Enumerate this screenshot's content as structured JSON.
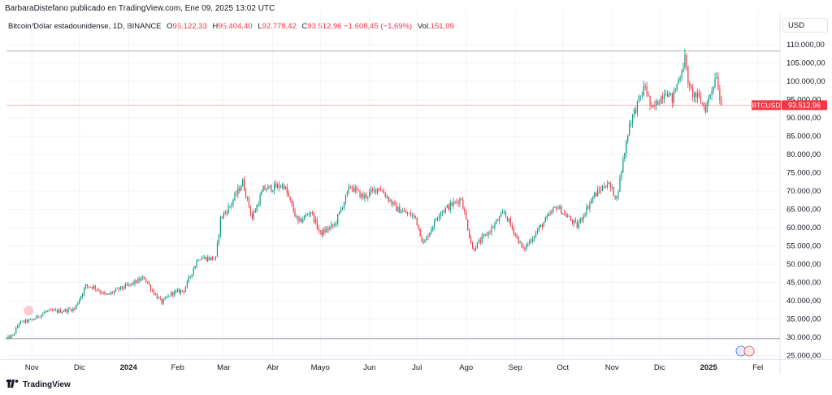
{
  "header": {
    "published": "BarbaraDistefano publicado en TradingView.com, Ene 09, 2025 13:02 UTC"
  },
  "legend": {
    "symbol": "Bitcoin/Dólar estadounidense, 1D, BINANCE",
    "o_label": "O",
    "o_value": "95.122,33",
    "h_label": "H",
    "h_value": "95.404,40",
    "l_label": "L",
    "l_value": "92.778,42",
    "c_label": "C",
    "c_value": "93.512,96",
    "change": "−1.608,45 (−1,69%)",
    "vol_label": "Vol.",
    "vol_value": "151,09"
  },
  "currency": "USD",
  "price_tag": {
    "ticker": "BTCUSD",
    "value": "93.512,96"
  },
  "footer": {
    "brand": "TradingView",
    "logo_icon": "tradingview-logo-icon"
  },
  "colors": {
    "up": "#089981",
    "down": "#f23645",
    "grid": "#f0f3fa",
    "axis_text": "#131722"
  },
  "chart_data": {
    "type": "candlestick",
    "ylim": [
      24000,
      112500
    ],
    "y_ticks": [
      25000,
      30000,
      35000,
      40000,
      45000,
      50000,
      55000,
      60000,
      65000,
      70000,
      75000,
      80000,
      85000,
      90000,
      95000,
      100000,
      105000,
      110000
    ],
    "y_tick_labels": [
      "25.000,00",
      "30.000,00",
      "35.000,00",
      "40.000,00",
      "45.000,00",
      "50.000,00",
      "55.000,00",
      "60.000,00",
      "65.000,00",
      "70.000,00",
      "75.000,00",
      "80.000,00",
      "85.000,00",
      "90.000,00",
      "95.000,00",
      "100.000,00",
      "105.000,00",
      "110.000,00"
    ],
    "x_ticks": [
      {
        "date": "2023-11-01",
        "label": "Nov"
      },
      {
        "date": "2023-12-01",
        "label": "Dic"
      },
      {
        "date": "2024-01-01",
        "label": "2024"
      },
      {
        "date": "2024-02-01",
        "label": "Feb"
      },
      {
        "date": "2024-03-01",
        "label": "Mar"
      },
      {
        "date": "2024-04-01",
        "label": "Abr"
      },
      {
        "date": "2024-05-01",
        "label": "Mayo"
      },
      {
        "date": "2024-06-01",
        "label": "Jun"
      },
      {
        "date": "2024-07-01",
        "label": "Jul"
      },
      {
        "date": "2024-08-01",
        "label": "Ago"
      },
      {
        "date": "2024-09-01",
        "label": "Sep"
      },
      {
        "date": "2024-10-01",
        "label": "Oct"
      },
      {
        "date": "2024-11-01",
        "label": "Nov"
      },
      {
        "date": "2024-12-01",
        "label": "Dic"
      },
      {
        "date": "2025-01-01",
        "label": "2025"
      },
      {
        "date": "2025-02-01",
        "label": "Fel"
      }
    ],
    "x_range": [
      "2023-10-16",
      "2025-02-15"
    ],
    "range_high": 108300,
    "range_low": 29600,
    "last_price": 93512.96,
    "grid": true,
    "close_path": [
      [
        "2023-10-16",
        29700
      ],
      [
        "2023-10-20",
        30400
      ],
      [
        "2023-10-24",
        34000
      ],
      [
        "2023-11-01",
        34700
      ],
      [
        "2023-11-10",
        37100
      ],
      [
        "2023-11-20",
        37200
      ],
      [
        "2023-11-28",
        37800
      ],
      [
        "2023-12-05",
        44100
      ],
      [
        "2023-12-10",
        43800
      ],
      [
        "2023-12-18",
        41400
      ],
      [
        "2023-12-25",
        43000
      ],
      [
        "2024-01-01",
        44200
      ],
      [
        "2024-01-11",
        46300
      ],
      [
        "2024-01-16",
        42700
      ],
      [
        "2024-01-22",
        39500
      ],
      [
        "2024-01-28",
        42000
      ],
      [
        "2024-02-05",
        42900
      ],
      [
        "2024-02-14",
        51800
      ],
      [
        "2024-02-25",
        51500
      ],
      [
        "2024-02-28",
        62500
      ],
      [
        "2024-03-05",
        66000
      ],
      [
        "2024-03-13",
        72500
      ],
      [
        "2024-03-19",
        62700
      ],
      [
        "2024-03-26",
        70500
      ],
      [
        "2024-04-08",
        71600
      ],
      [
        "2024-04-17",
        61300
      ],
      [
        "2024-04-25",
        64500
      ],
      [
        "2024-05-01",
        58300
      ],
      [
        "2024-05-10",
        60800
      ],
      [
        "2024-05-20",
        71400
      ],
      [
        "2024-05-28",
        68300
      ],
      [
        "2024-06-07",
        71100
      ],
      [
        "2024-06-18",
        65200
      ],
      [
        "2024-06-30",
        62800
      ],
      [
        "2024-07-05",
        55500
      ],
      [
        "2024-07-15",
        64100
      ],
      [
        "2024-07-29",
        68000
      ],
      [
        "2024-08-05",
        54000
      ],
      [
        "2024-08-15",
        58700
      ],
      [
        "2024-08-25",
        64200
      ],
      [
        "2024-09-06",
        53900
      ],
      [
        "2024-09-15",
        59200
      ],
      [
        "2024-09-27",
        65900
      ],
      [
        "2024-10-10",
        60400
      ],
      [
        "2024-10-20",
        68400
      ],
      [
        "2024-10-29",
        72300
      ],
      [
        "2024-11-04",
        68200
      ],
      [
        "2024-11-12",
        88500
      ],
      [
        "2024-11-22",
        98900
      ],
      [
        "2024-11-26",
        91900
      ],
      [
        "2024-12-05",
        97800
      ],
      [
        "2024-12-09",
        95000
      ],
      [
        "2024-12-17",
        106200
      ],
      [
        "2024-12-20",
        97500
      ],
      [
        "2024-12-26",
        95200
      ],
      [
        "2024-12-30",
        92600
      ],
      [
        "2025-01-03",
        98100
      ],
      [
        "2025-01-06",
        102200
      ],
      [
        "2025-01-08",
        95100
      ],
      [
        "2025-01-09",
        93513
      ]
    ]
  }
}
